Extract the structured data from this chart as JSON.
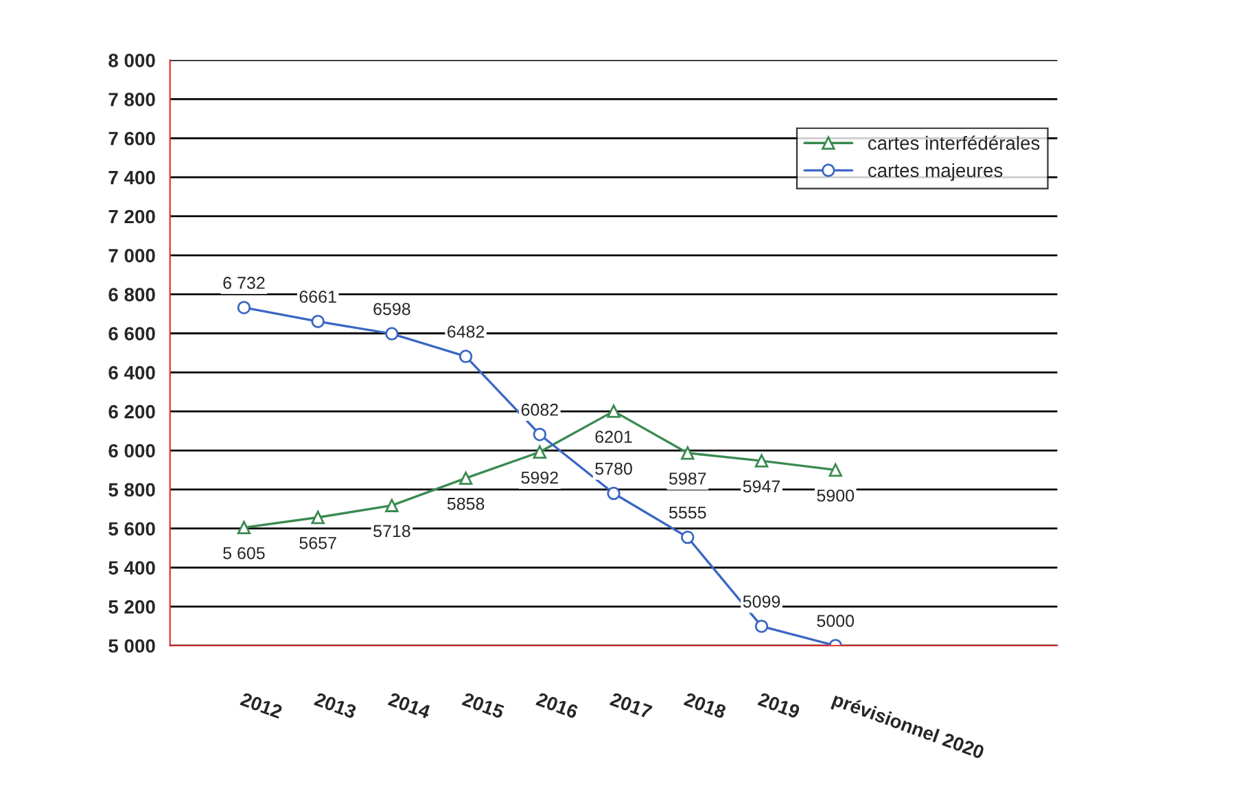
{
  "chart_data": {
    "type": "line",
    "categories": [
      "2012",
      "2013",
      "2014",
      "2015",
      "2016",
      "2017",
      "2018",
      "2019",
      "prévisionnel 2020",
      null,
      null
    ],
    "series": [
      {
        "name": "cartes interfédérales",
        "color": "#3a8a50",
        "marker": "triangle",
        "values": [
          5605,
          5657,
          5718,
          5858,
          5992,
          6201,
          5987,
          5947,
          5900,
          null,
          null
        ],
        "value_labels": [
          "5 605",
          "5657",
          "5718",
          "5858",
          "5992",
          "6201",
          "5987",
          "5947",
          "5900",
          null,
          null
        ]
      },
      {
        "name": "cartes majeures",
        "color": "#3a66c4",
        "marker": "circle",
        "values": [
          6732,
          6661,
          6598,
          6482,
          6082,
          5780,
          5555,
          5099,
          5000,
          null,
          null
        ],
        "value_labels": [
          "6 732",
          "6661",
          "6598",
          "6482",
          "6082",
          "5780",
          "5555",
          "5099",
          "5000",
          null,
          null
        ]
      }
    ],
    "ylim": [
      5000,
      8000
    ],
    "yticks": [
      {
        "value": 5000,
        "label": "5 000"
      },
      {
        "value": 5200,
        "label": "5 200"
      },
      {
        "value": 5400,
        "label": "5 400"
      },
      {
        "value": 5600,
        "label": "5 600"
      },
      {
        "value": 5800,
        "label": "5 800"
      },
      {
        "value": 6000,
        "label": "6 000"
      },
      {
        "value": 6200,
        "label": "6 200"
      },
      {
        "value": 6400,
        "label": "6 400"
      },
      {
        "value": 6600,
        "label": "6 600"
      },
      {
        "value": 6800,
        "label": "6 800"
      },
      {
        "value": 7000,
        "label": "7 000"
      },
      {
        "value": 7200,
        "label": "7 200"
      },
      {
        "value": 7400,
        "label": "7 400"
      },
      {
        "value": 7600,
        "label": "7 600"
      },
      {
        "value": 7800,
        "label": "7 800"
      },
      {
        "value": 8000,
        "label": "8 000"
      }
    ],
    "grid": "y",
    "legend": "top right",
    "line_style": "solid"
  }
}
